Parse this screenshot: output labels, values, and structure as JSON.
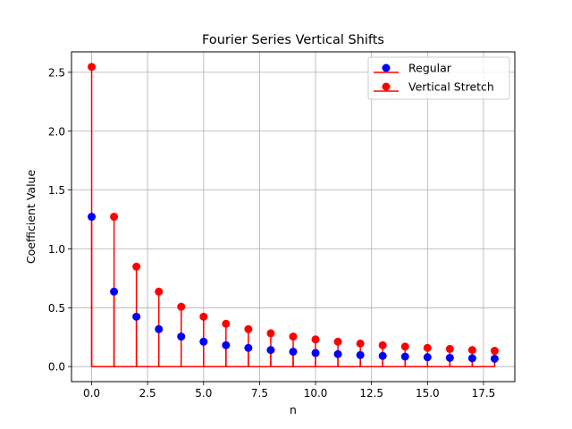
{
  "chart_data": {
    "type": "stem",
    "title": "Fourier Series Vertical Shifts",
    "xlabel": "n",
    "ylabel": "Coefficient Value",
    "xlim": [
      -0.9,
      18.9
    ],
    "ylim": [
      -0.1276,
      2.6739
    ],
    "xticks": [
      0,
      2.5,
      5,
      7.5,
      10,
      12.5,
      15,
      17.5
    ],
    "xtick_labels": [
      "0.0",
      "2.5",
      "5.0",
      "7.5",
      "10.0",
      "12.5",
      "15.0",
      "17.5"
    ],
    "yticks": [
      0,
      0.5,
      1,
      1.5,
      2,
      2.5
    ],
    "ytick_labels": [
      "0.0",
      "0.5",
      "1.0",
      "1.5",
      "2.0",
      "2.5"
    ],
    "grid": true,
    "legend_position": "upper right",
    "x": [
      0,
      1,
      2,
      3,
      4,
      5,
      6,
      7,
      8,
      9,
      10,
      11,
      12,
      13,
      14,
      15,
      16,
      17,
      18
    ],
    "series": [
      {
        "name": "Vertical Stretch",
        "marker_color": "#ff0000",
        "stem_color": "#ff0000",
        "values": [
          2.546,
          1.273,
          0.849,
          0.637,
          0.509,
          0.424,
          0.364,
          0.318,
          0.283,
          0.255,
          0.231,
          0.212,
          0.196,
          0.182,
          0.17,
          0.159,
          0.15,
          0.141,
          0.134
        ]
      },
      {
        "name": "Regular",
        "marker_color": "#0000ff",
        "stem_color": "#ff0000",
        "values": [
          1.273,
          0.637,
          0.424,
          0.318,
          0.255,
          0.212,
          0.182,
          0.159,
          0.141,
          0.127,
          0.116,
          0.106,
          0.098,
          0.091,
          0.085,
          0.08,
          0.075,
          0.071,
          0.067
        ]
      }
    ]
  }
}
